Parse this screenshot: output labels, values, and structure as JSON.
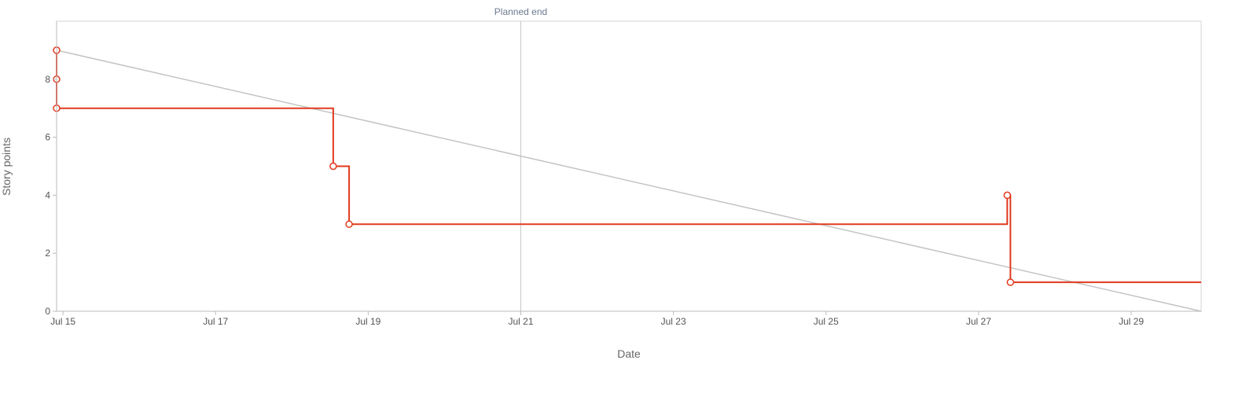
{
  "chart_data": {
    "type": "line",
    "xlabel": "Date",
    "ylabel": "Story points",
    "x_tick_labels": [
      "Jul 15",
      "Jul 17",
      "Jul 19",
      "Jul 21",
      "Jul 23",
      "Jul 25",
      "Jul 27",
      "Jul 29"
    ],
    "x_ticks": [
      "2023-07-15",
      "2023-07-17",
      "2023-07-19",
      "2023-07-21",
      "2023-07-23",
      "2023-07-25",
      "2023-07-27",
      "2023-07-29"
    ],
    "y_ticks": [
      0,
      2,
      4,
      6,
      8
    ],
    "xlim": [
      "2023-07-14T22:00",
      "2023-07-29T22:00"
    ],
    "ylim": [
      0,
      10
    ],
    "grid": false,
    "annotation": {
      "label": "Planned end",
      "x": "2023-07-21"
    },
    "series": [
      {
        "style": "step",
        "color": "#e03a1e",
        "markers": true,
        "points": [
          {
            "x": "2023-07-14T22:00",
            "y": 9
          },
          {
            "x": "2023-07-14T22:00",
            "y": 8
          },
          {
            "x": "2023-07-14T22:00",
            "y": 7
          },
          {
            "x": "2023-07-18T13:00",
            "y": 5
          },
          {
            "x": "2023-07-18T18:00",
            "y": 3
          },
          {
            "x": "2023-07-27T09:00",
            "y": 4
          },
          {
            "x": "2023-07-27T10:00",
            "y": 1
          }
        ],
        "end": {
          "x": "2023-07-29T22:00",
          "y": 1
        }
      },
      {
        "style": "line",
        "color": "#c4c4c4",
        "markers": false,
        "points": [
          {
            "x": "2023-07-14T22:00",
            "y": 9
          },
          {
            "x": "2023-07-29T22:00",
            "y": 0
          }
        ]
      }
    ]
  }
}
